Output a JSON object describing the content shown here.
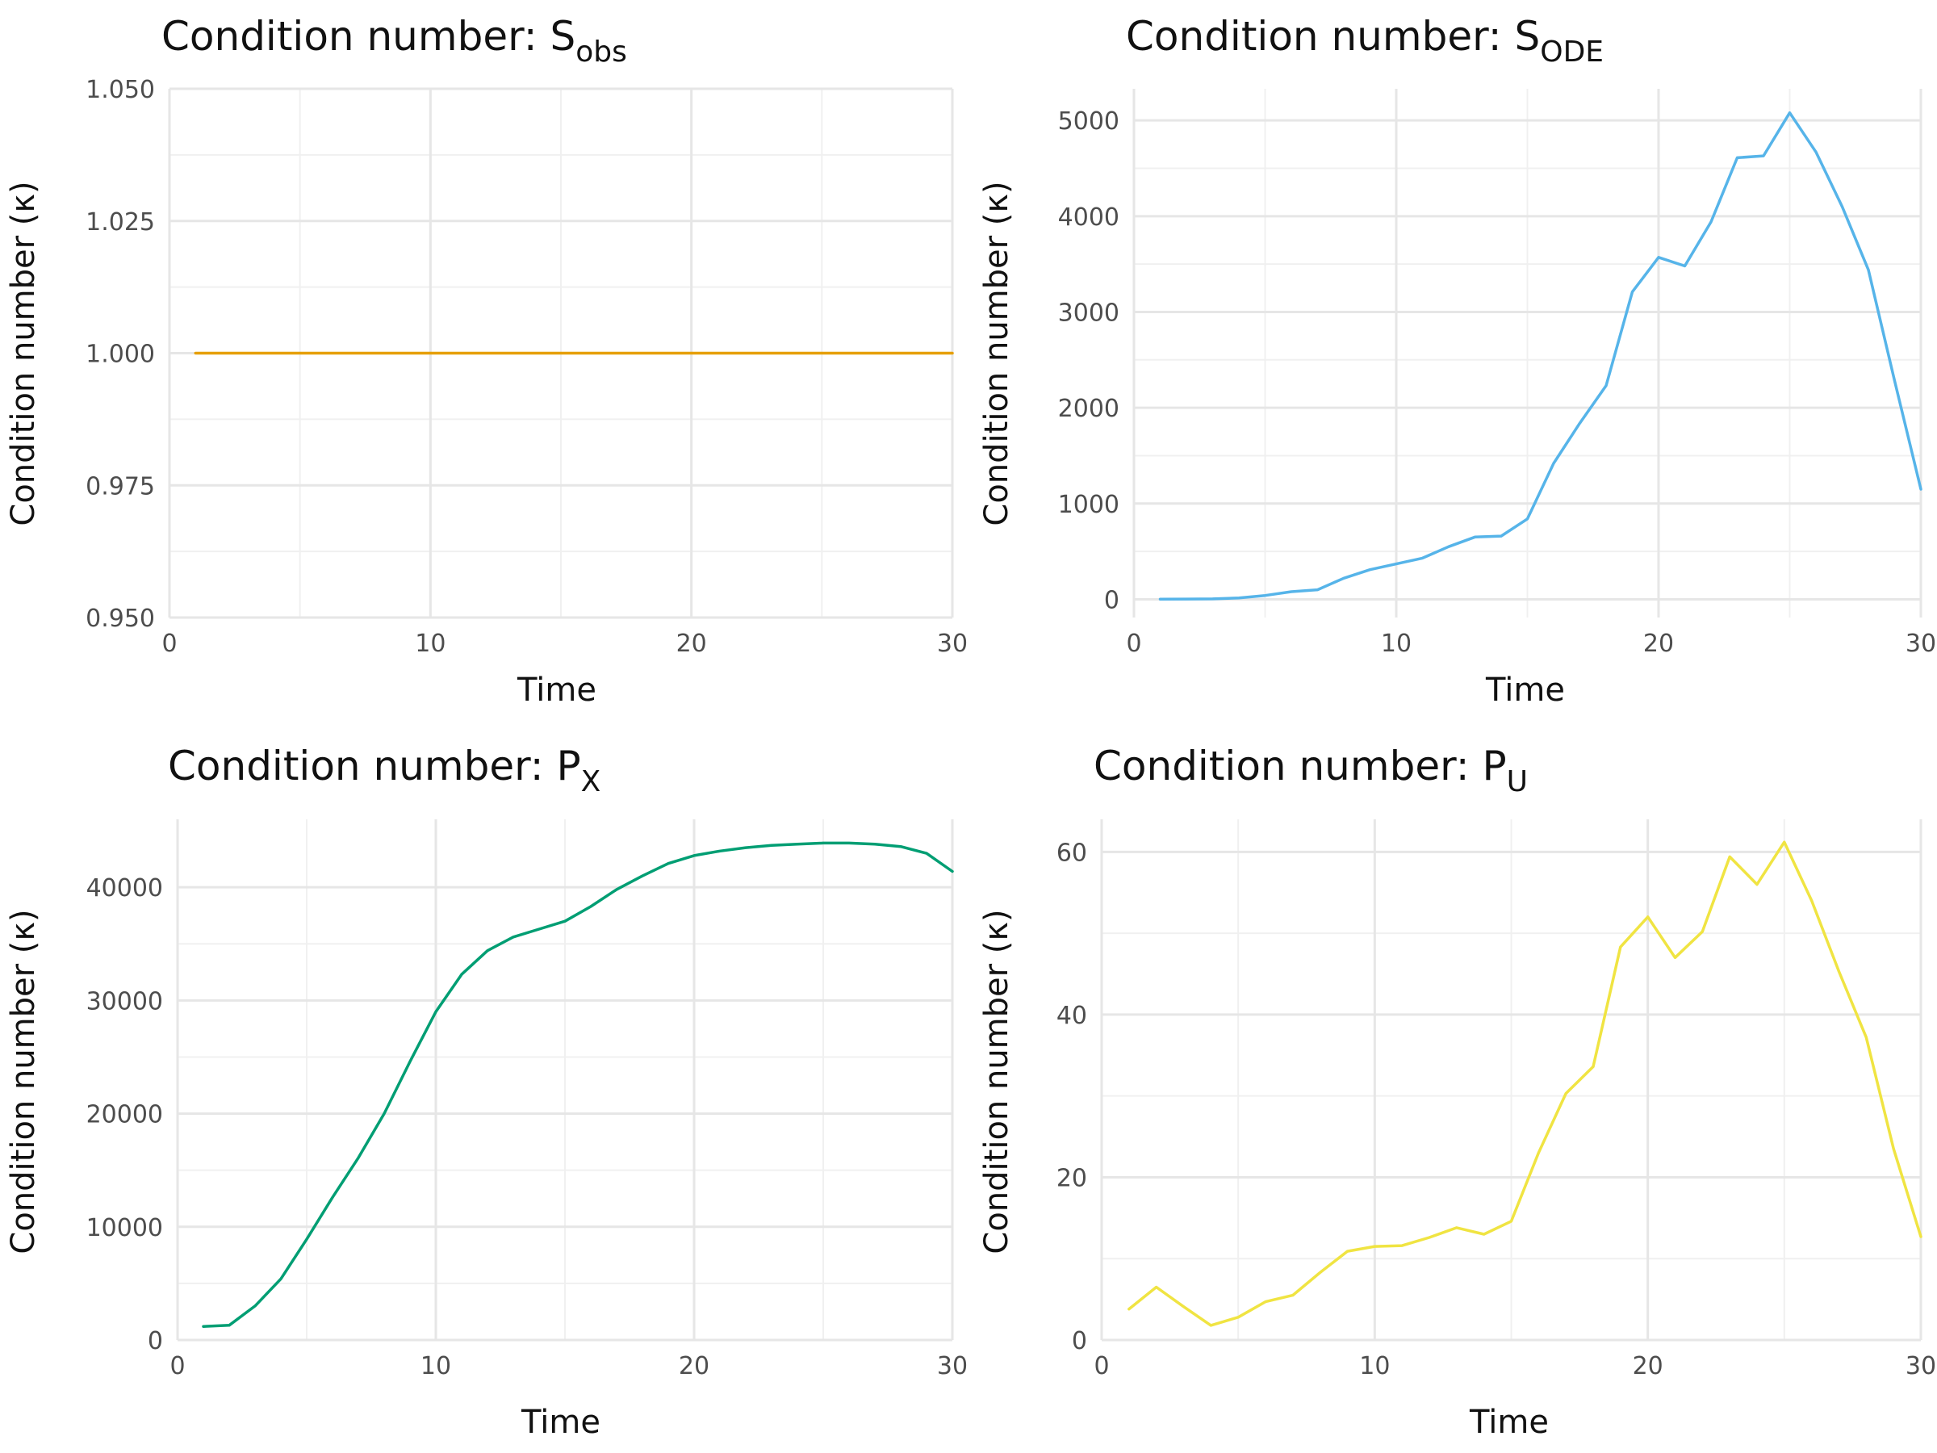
{
  "chart_data": [
    {
      "type": "line",
      "title": "Condition number: ",
      "title_symbol": "S",
      "title_subscript": "obs",
      "xlabel": "Time",
      "ylabel": "Condition number (κ)",
      "xlim": [
        0,
        30
      ],
      "ylim": [
        0.95,
        1.05
      ],
      "xticks": [
        0,
        10,
        20,
        30
      ],
      "yticks": [
        0.95,
        0.975,
        1.0,
        1.025,
        1.05
      ],
      "ytick_labels": [
        "0.950",
        "0.975",
        "1.000",
        "1.025",
        "1.050"
      ],
      "grid": true,
      "color": "#E69F00",
      "x": [
        1,
        2,
        3,
        4,
        5,
        6,
        7,
        8,
        9,
        10,
        11,
        12,
        13,
        14,
        15,
        16,
        17,
        18,
        19,
        20,
        21,
        22,
        23,
        24,
        25,
        26,
        27,
        28,
        29,
        30
      ],
      "y": [
        1,
        1,
        1,
        1,
        1,
        1,
        1,
        1,
        1,
        1,
        1,
        1,
        1,
        1,
        1,
        1,
        1,
        1,
        1,
        1,
        1,
        1,
        1,
        1,
        1,
        1,
        1,
        1,
        1,
        1
      ]
    },
    {
      "type": "line",
      "title": "Condition number: ",
      "title_symbol": "S",
      "title_subscript": "ODE",
      "xlabel": "Time",
      "ylabel": "Condition number (κ)",
      "xlim": [
        0,
        30
      ],
      "ylim": [
        -190,
        5330
      ],
      "xticks": [
        0,
        10,
        20,
        30
      ],
      "yticks": [
        0,
        1000,
        2000,
        3000,
        4000,
        5000
      ],
      "ytick_labels": [
        "0",
        "1000",
        "2000",
        "3000",
        "4000",
        "5000"
      ],
      "grid": true,
      "color": "#56B4E9",
      "x": [
        1,
        2,
        3,
        4,
        5,
        6,
        7,
        8,
        9,
        10,
        11,
        12,
        13,
        14,
        15,
        16,
        17,
        18,
        19,
        20,
        21,
        22,
        23,
        24,
        25,
        26,
        27,
        28,
        29,
        30
      ],
      "y": [
        2,
        3,
        5,
        15,
        40,
        80,
        100,
        220,
        310,
        370,
        430,
        550,
        650,
        660,
        840,
        1420,
        1840,
        2230,
        3210,
        3570,
        3480,
        3940,
        4610,
        4630,
        5080,
        4670,
        4100,
        3440,
        2280,
        1150
      ]
    },
    {
      "type": "line",
      "title": "Condition number: ",
      "title_symbol": "P",
      "title_subscript": "X",
      "xlabel": "Time",
      "ylabel": "Condition number (κ)",
      "xlim": [
        0,
        30
      ],
      "ylim": [
        0,
        46000
      ],
      "xticks": [
        0,
        10,
        20,
        30
      ],
      "yticks": [
        0,
        10000,
        20000,
        30000,
        40000
      ],
      "ytick_labels": [
        "0",
        "10000",
        "20000",
        "30000",
        "40000"
      ],
      "grid": true,
      "color": "#009E73",
      "x": [
        1,
        2,
        3,
        4,
        5,
        6,
        7,
        8,
        9,
        10,
        11,
        12,
        13,
        14,
        15,
        16,
        17,
        18,
        19,
        20,
        21,
        22,
        23,
        24,
        25,
        26,
        27,
        28,
        29,
        30
      ],
      "y": [
        1200,
        1300,
        3000,
        5400,
        8900,
        12600,
        16100,
        20000,
        24600,
        29000,
        32300,
        34400,
        35600,
        36300,
        37000,
        38300,
        39800,
        41000,
        42100,
        42800,
        43200,
        43500,
        43700,
        43800,
        43900,
        43900,
        43800,
        43600,
        43000,
        41400
      ]
    },
    {
      "type": "line",
      "title": "Condition number: ",
      "title_symbol": "P",
      "title_subscript": "U",
      "xlabel": "Time",
      "ylabel": "Condition number (κ)",
      "xlim": [
        0,
        30
      ],
      "ylim": [
        0,
        64
      ],
      "xticks": [
        0,
        10,
        20,
        30
      ],
      "yticks": [
        0,
        20,
        40,
        60
      ],
      "ytick_labels": [
        "0",
        "20",
        "40",
        "60"
      ],
      "grid": true,
      "color": "#F0E442",
      "x": [
        1,
        2,
        3,
        4,
        5,
        6,
        7,
        8,
        9,
        10,
        11,
        12,
        13,
        14,
        15,
        16,
        17,
        18,
        19,
        20,
        21,
        22,
        23,
        24,
        25,
        26,
        27,
        28,
        29,
        30
      ],
      "y": [
        3.8,
        6.5,
        4.1,
        1.8,
        2.8,
        4.7,
        5.5,
        8.3,
        10.9,
        11.5,
        11.6,
        12.6,
        13.8,
        13.0,
        14.6,
        23.0,
        30.3,
        33.6,
        48.3,
        52.0,
        47.0,
        50.2,
        59.4,
        56.0,
        61.2,
        54.0,
        45.3,
        37.2,
        23.5,
        12.7
      ]
    }
  ]
}
